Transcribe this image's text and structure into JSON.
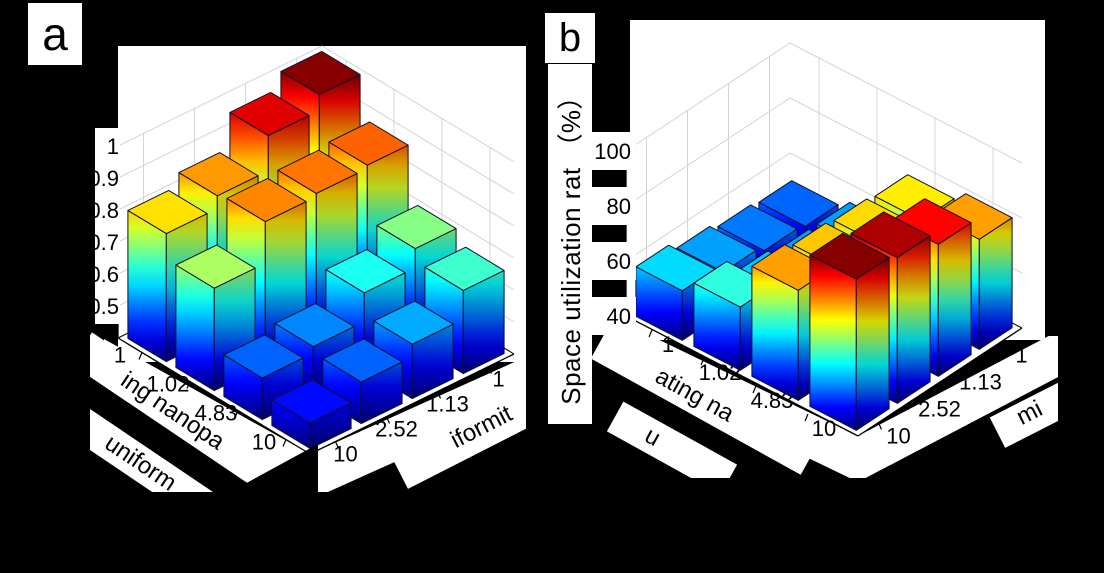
{
  "figure": {
    "background": "#000000",
    "panel_a_label": "a",
    "panel_b_label": "b"
  },
  "chart_data": [
    {
      "type": "bar",
      "variant": "3d-bar-grid",
      "panel": "a",
      "zlabel": "",
      "z_ticks": [
        0.5,
        0.6,
        0.7,
        0.8,
        0.9,
        1.0
      ],
      "z_tick_labels": [
        "0.5",
        "0.6",
        "0.7",
        "0.8",
        "0.9",
        "1"
      ],
      "zlim": [
        0.4,
        1.0
      ],
      "row_axis": {
        "tick_labels": [
          "1",
          "1.02",
          "4.83",
          "10"
        ],
        "label_fragments": [
          "ing nanopa",
          "uniform"
        ]
      },
      "col_axis": {
        "tick_labels": [
          "1",
          "1.13",
          "2.52",
          "10"
        ],
        "label_fragments": [
          "iformit"
        ]
      },
      "rows": [
        "1",
        "1.02",
        "4.83",
        "10"
      ],
      "cols": [
        "1",
        "1.13",
        "2.52",
        "10"
      ],
      "values": [
        [
          1.0,
          0.95,
          0.84,
          0.8
        ],
        [
          0.87,
          0.86,
          0.85,
          0.72
        ],
        [
          0.7,
          0.64,
          0.55,
          0.53
        ],
        [
          0.66,
          0.57,
          0.53,
          0.48
        ]
      ],
      "colormap": "jet",
      "color_range": [
        0.4,
        1.0
      ],
      "grid": true,
      "legend": "none"
    },
    {
      "type": "bar",
      "variant": "3d-bar-grid",
      "panel": "b",
      "zlabel": "Space utilization rat （%）",
      "z_ticks": [
        40,
        60,
        80,
        100
      ],
      "z_tick_labels": [
        "40",
        "60",
        "80",
        "100"
      ],
      "zlim": [
        40,
        100
      ],
      "row_axis": {
        "tick_labels": [
          "1",
          "1.02",
          "4.83",
          "10"
        ],
        "label_fragments": [
          "ating na",
          "u"
        ]
      },
      "col_axis": {
        "tick_labels": [
          "1",
          "1.13",
          "2.52",
          "10"
        ],
        "label_fragments": [
          "mi"
        ]
      },
      "rows": [
        "1",
        "1.02",
        "4.83",
        "10"
      ],
      "cols": [
        "1",
        "1.13",
        "2.52",
        "10"
      ],
      "values": [
        [
          52,
          53,
          55,
          58
        ],
        [
          55,
          55,
          57,
          63
        ],
        [
          76,
          77,
          78,
          80
        ],
        [
          80,
          88,
          93,
          95
        ]
      ],
      "colormap": "jet",
      "color_range": [
        40,
        95
      ],
      "grid": true,
      "legend": "none"
    }
  ]
}
